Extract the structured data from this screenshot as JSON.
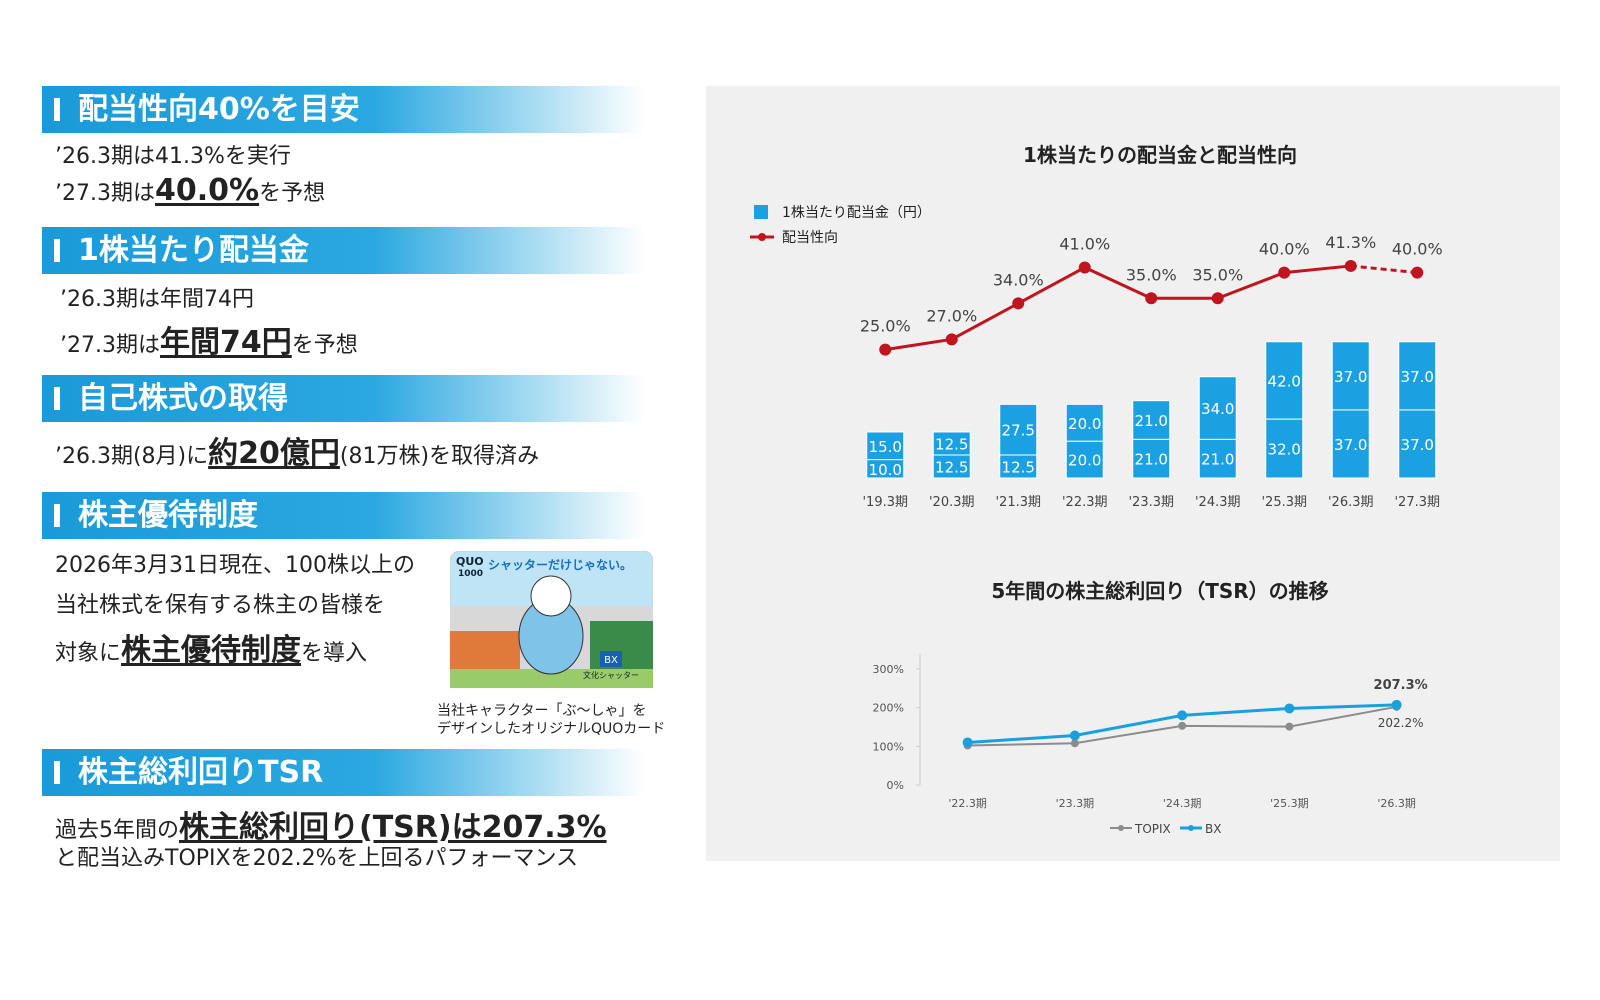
{
  "sections": [
    {
      "heading": "配当性向40%を目安",
      "lines": [
        [
          {
            "text": "’26.3期は41.3%を実行"
          }
        ],
        [
          {
            "text": "’27.3期は"
          },
          {
            "text": "40.0%",
            "strong": true
          },
          {
            "text": "を予想"
          }
        ]
      ]
    },
    {
      "heading": "1株当たり配当金",
      "lines": [
        [
          {
            "text": "’26.3期は年間74円"
          }
        ],
        [
          {
            "text": "’27.3期は"
          },
          {
            "text": "年間74円",
            "strong": true
          },
          {
            "text": "を予想"
          }
        ]
      ]
    },
    {
      "heading": "自己株式の取得",
      "lines": [
        [
          {
            "text": "’26.3期(8月)に"
          },
          {
            "text": "約20億円",
            "strong": true
          },
          {
            "text": "(81万株)を取得済み"
          }
        ]
      ]
    },
    {
      "heading": "株主優待制度",
      "lines": [
        [
          {
            "text": "2026年3月31日現在、100株以上の"
          }
        ],
        [
          {
            "text": "当社株式を保有する株主の皆様を"
          }
        ],
        [
          {
            "text": "対象に"
          },
          {
            "text": "株主優待制度",
            "strong": true
          },
          {
            "text": "を導入"
          }
        ]
      ],
      "card": {
        "brand": "QUO",
        "amount": "1000",
        "slogan": "シャッターだけじゃない。",
        "logo": "BX",
        "company": "文化シャッター"
      },
      "caption": [
        "当社キャラクター「ぶ〜しゃ」を",
        "デザインしたオリジナルQUOカード"
      ]
    },
    {
      "heading": "株主総利回りTSR",
      "lines": [
        [
          {
            "text": "過去5年間の"
          },
          {
            "text": "株主総利回り(TSR)は207.3%",
            "strong": true
          }
        ],
        [
          {
            "text": "と配当込みTOPIXを202.2%を上回るパフォーマンス"
          }
        ]
      ]
    }
  ],
  "chart_data": [
    {
      "type": "bar",
      "stacked": true,
      "title": "1株当たりの配当金と配当性向",
      "categories": [
        "'19.3期",
        "'20.3期",
        "'21.3期",
        "'22.3期",
        "'23.3期",
        "'24.3期",
        "'25.3期",
        "'26.3期",
        "'27.3期"
      ],
      "series": [
        {
          "name": "1株当たり配当金（円）",
          "color": "#1ba1e2",
          "values": [
            10,
            12.5,
            12.5,
            20,
            21,
            21,
            32,
            37,
            37
          ],
          "value_labels": [
            "10.0",
            "12.5",
            "12.5",
            "20.0",
            "21.0",
            "21.0",
            "32.0",
            "37.0",
            "37.0"
          ]
        },
        {
          "color": "#1ba1e2",
          "values": [
            15,
            12.5,
            27.5,
            20,
            21,
            34,
            42,
            37,
            37
          ],
          "value_labels": [
            "15.0",
            "12.5",
            "27.5",
            "20.0",
            "21.0",
            "34.0",
            "42.0",
            "37.0",
            "37.0"
          ]
        },
        {
          "name": "配当性向",
          "type": "line",
          "axis": "y2",
          "color": "#c0141e",
          "values": [
            25,
            27,
            34,
            41,
            35,
            35,
            40,
            41.3,
            40
          ],
          "value_labels": [
            "25.0%",
            "27.0%",
            "34.0%",
            "41.0%",
            "35.0%",
            "35.0%",
            "40.0%",
            "41.3%",
            "40.0%"
          ]
        }
      ],
      "ylim": [
        0,
        145
      ],
      "y2lim": [
        0,
        52
      ],
      "dashed_last_segment": true
    },
    {
      "type": "line",
      "title": "5年間の株主総利回り（TSR）の推移",
      "categories": [
        "'22.3期",
        "'23.3期",
        "'24.3期",
        "'25.3期",
        "'26.3期"
      ],
      "series": [
        {
          "name": "TOPIX",
          "color": "#8c8c8c",
          "values": [
            102,
            108,
            153,
            151,
            202.2
          ],
          "value_labels": [
            null,
            null,
            null,
            null,
            "202.2%"
          ]
        },
        {
          "name": "BX",
          "color": "#1aa0dc",
          "values": [
            110,
            128,
            180,
            198,
            207.3
          ],
          "value_labels": [
            null,
            null,
            null,
            null,
            "207.3%"
          ]
        }
      ],
      "ylim": [
        0,
        300
      ],
      "yticks": [
        {
          "value": 0,
          "label": "0%"
        },
        {
          "value": 100,
          "label": "100%"
        },
        {
          "value": 200,
          "label": "200%"
        },
        {
          "value": 300,
          "label": "300%"
        }
      ],
      "grid": false,
      "legend": "bottom"
    }
  ]
}
